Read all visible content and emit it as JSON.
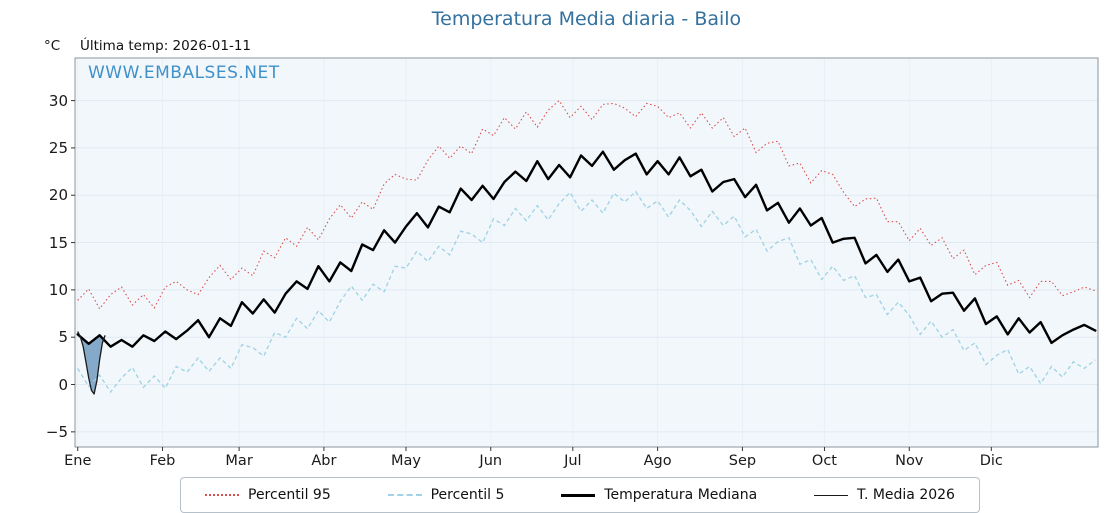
{
  "title": "Temperatura Media diaria - Bailo",
  "unit": "°C",
  "last_temp_label": "Última temp: 2026-01-11",
  "watermark": "WWW.EMBALSES.NET",
  "colors": {
    "title": "#33719f",
    "watermark": "#4191c9",
    "plot_background": "#f2f7fb",
    "grid_horizontal": "#dfeaf3",
    "grid_vertical": "#e8f0f6",
    "spine": "#8a959d",
    "percentil95": "#d94f4f",
    "percentil5": "#9ed2e4",
    "mediana": "#000000",
    "media2026": "#1a1a1a",
    "fill2026": "#4a7fae"
  },
  "chart_data": {
    "type": "line",
    "title": "Temperatura Media diaria - Bailo",
    "xlabel": "",
    "ylabel": "°C",
    "xlim": [
      0,
      374
    ],
    "ylim": [
      -6.6,
      34.5
    ],
    "y_ticks": [
      -5,
      0,
      5,
      10,
      15,
      20,
      25,
      30
    ],
    "x_ticks_months": [
      {
        "label": "Ene",
        "day": 1
      },
      {
        "label": "Feb",
        "day": 32
      },
      {
        "label": "Mar",
        "day": 60
      },
      {
        "label": "Abr",
        "day": 91
      },
      {
        "label": "May",
        "day": 121
      },
      {
        "label": "Jun",
        "day": 152
      },
      {
        "label": "Jul",
        "day": 182
      },
      {
        "label": "Ago",
        "day": 213
      },
      {
        "label": "Sep",
        "day": 244
      },
      {
        "label": "Oct",
        "day": 274
      },
      {
        "label": "Nov",
        "day": 305
      },
      {
        "label": "Dic",
        "day": 335
      }
    ],
    "sampling": {
      "start_day": 1,
      "step_days": 4
    },
    "legend_position": "bottom",
    "series": [
      {
        "name": "Percentil 95",
        "style": "dotted",
        "color": "#d94f4f",
        "values": [
          8.9,
          10.1,
          8.0,
          9.5,
          10.3,
          8.4,
          9.5,
          8.1,
          10.3,
          10.9,
          10.0,
          9.5,
          11.3,
          12.6,
          11.1,
          12.3,
          11.5,
          14.1,
          13.4,
          15.5,
          14.6,
          16.6,
          15.3,
          17.5,
          19.0,
          17.6,
          19.3,
          18.5,
          21.2,
          22.2,
          21.7,
          21.6,
          23.7,
          25.2,
          23.9,
          25.2,
          24.4,
          27.0,
          26.3,
          28.2,
          27.0,
          28.8,
          27.2,
          29.0,
          30.0,
          28.2,
          29.4,
          28.0,
          29.6,
          29.7,
          29.2,
          28.3,
          29.7,
          29.4,
          28.2,
          28.7,
          27.1,
          28.7,
          27.1,
          28.2,
          26.2,
          27.1,
          24.5,
          25.5,
          25.7,
          23.1,
          23.4,
          21.3,
          22.6,
          22.2,
          20.3,
          18.8,
          19.6,
          19.7,
          17.2,
          17.2,
          15.2,
          16.5,
          14.7,
          15.5,
          13.3,
          14.2,
          11.6,
          12.6,
          12.9,
          10.5,
          11.0,
          9.2,
          10.9,
          10.9,
          9.4,
          9.8,
          10.3,
          9.9
        ]
      },
      {
        "name": "Percentil 5",
        "style": "dashed",
        "color": "#9ed2e4",
        "values": [
          1.7,
          -0.2,
          1.0,
          -0.8,
          0.7,
          1.8,
          -0.3,
          0.9,
          -0.4,
          1.9,
          1.3,
          2.8,
          1.4,
          2.8,
          1.7,
          4.2,
          3.9,
          3.0,
          5.5,
          5.0,
          7.0,
          5.9,
          7.8,
          6.6,
          8.8,
          10.4,
          8.9,
          10.6,
          9.8,
          12.5,
          12.3,
          14.1,
          13.0,
          14.6,
          13.7,
          16.2,
          15.9,
          15.0,
          17.5,
          16.8,
          18.6,
          17.3,
          18.9,
          17.4,
          19.1,
          20.3,
          18.3,
          19.5,
          18.1,
          20.2,
          19.3,
          20.4,
          18.6,
          19.4,
          17.7,
          19.5,
          18.4,
          16.7,
          18.3,
          16.8,
          17.8,
          15.6,
          16.4,
          14.1,
          15.1,
          15.5,
          12.7,
          13.2,
          11.1,
          12.5,
          11.0,
          11.5,
          9.2,
          9.5,
          7.4,
          8.7,
          7.3,
          5.3,
          6.7,
          5.0,
          5.8,
          3.6,
          4.4,
          2.1,
          3.1,
          3.7,
          1.1,
          1.9,
          0.1,
          1.9,
          0.8,
          2.4,
          1.7,
          2.6
        ]
      },
      {
        "name": "Temperatura Mediana",
        "style": "solid-thick",
        "color": "#000000",
        "values": [
          5.3,
          4.3,
          5.2,
          4.0,
          4.7,
          4.0,
          5.2,
          4.6,
          5.6,
          4.8,
          5.7,
          6.8,
          5.0,
          7.0,
          6.2,
          8.7,
          7.5,
          9.0,
          7.6,
          9.6,
          10.9,
          10.1,
          12.5,
          10.9,
          12.9,
          12.0,
          14.8,
          14.2,
          16.3,
          15.0,
          16.7,
          18.1,
          16.6,
          18.8,
          18.2,
          20.7,
          19.5,
          21.0,
          19.6,
          21.4,
          22.5,
          21.5,
          23.6,
          21.7,
          23.2,
          21.9,
          24.2,
          23.1,
          24.6,
          22.7,
          23.7,
          24.4,
          22.2,
          23.6,
          22.2,
          24.0,
          22.0,
          22.7,
          20.4,
          21.4,
          21.7,
          19.8,
          21.1,
          18.4,
          19.2,
          17.1,
          18.6,
          16.8,
          17.6,
          15.0,
          15.4,
          15.5,
          12.8,
          13.7,
          11.9,
          13.2,
          10.9,
          11.3,
          8.8,
          9.6,
          9.7,
          7.8,
          9.1,
          6.4,
          7.2,
          5.3,
          7.0,
          5.5,
          6.6,
          4.4,
          5.2,
          5.8,
          6.3,
          5.7
        ]
      },
      {
        "name": "T. Media 2026",
        "style": "solid-thin",
        "color": "#1a1a1a",
        "days": [
          1,
          2,
          3,
          4,
          5,
          6,
          7,
          8,
          9,
          10,
          11
        ],
        "values": [
          5.6,
          5.0,
          4.0,
          2.4,
          0.7,
          -0.6,
          -1.0,
          0.4,
          2.6,
          4.4,
          5.2
        ],
        "fill_to": "Temperatura Mediana",
        "fill_color": "#4a7fae"
      }
    ]
  }
}
